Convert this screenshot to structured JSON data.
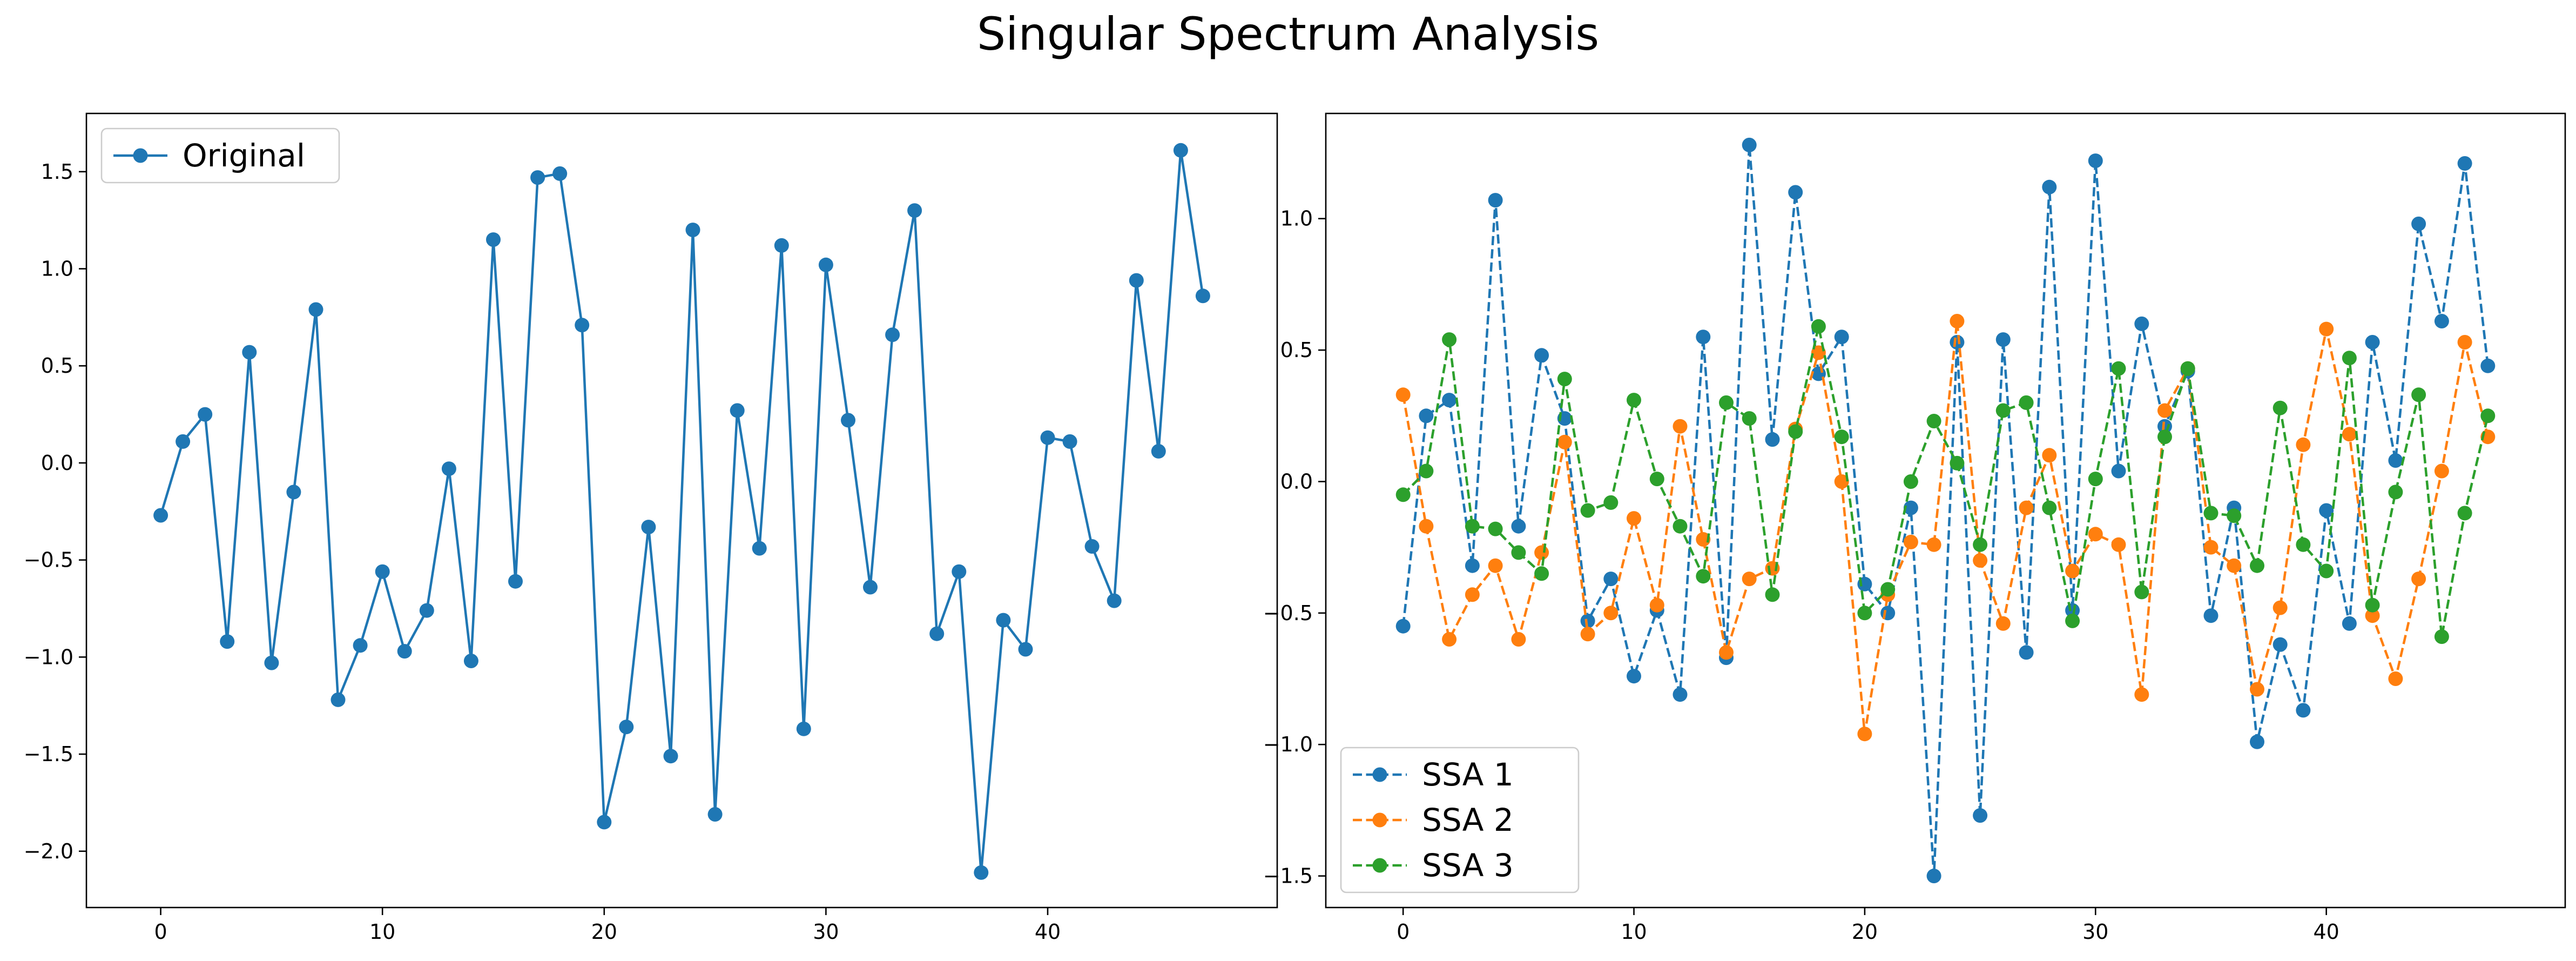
{
  "figure": {
    "suptitle": "Singular Spectrum Analysis"
  },
  "chart_data": [
    {
      "type": "line",
      "xlim": [
        -3.35,
        50.35
      ],
      "ylim": [
        -2.29,
        1.8
      ],
      "xticks": [
        0,
        10,
        20,
        30,
        40
      ],
      "xtick_labels": [
        "0",
        "10",
        "20",
        "30",
        "40"
      ],
      "yticks": [
        -2.0,
        -1.5,
        -1.0,
        -0.5,
        0.0,
        0.5,
        1.0,
        1.5
      ],
      "ytick_labels": [
        "−2.0",
        "−1.5",
        "−1.0",
        "−0.5",
        "0.0",
        "0.5",
        "1.0",
        "1.5"
      ],
      "legend_position": "upper-left",
      "series": [
        {
          "name": "Original",
          "color": "#1f77b4",
          "linestyle": "solid",
          "marker": "circle",
          "x": [
            0,
            1,
            2,
            3,
            4,
            5,
            6,
            7,
            8,
            9,
            10,
            11,
            12,
            13,
            14,
            15,
            16,
            17,
            18,
            19,
            20,
            21,
            22,
            23,
            24,
            25,
            26,
            27,
            28,
            29,
            30,
            31,
            32,
            33,
            34,
            35,
            36,
            37,
            38,
            39,
            40,
            41,
            42,
            43,
            44,
            45,
            46,
            47
          ],
          "values": [
            -0.27,
            0.11,
            0.25,
            -0.92,
            0.57,
            -1.03,
            -0.15,
            0.79,
            -1.22,
            -0.94,
            -0.56,
            -0.97,
            -0.76,
            -0.03,
            -1.02,
            1.15,
            -0.61,
            1.47,
            1.49,
            0.71,
            -1.85,
            -1.36,
            -0.33,
            -1.51,
            1.2,
            -1.81,
            0.27,
            -0.44,
            1.12,
            -1.37,
            1.02,
            0.22,
            -0.64,
            0.66,
            1.3,
            -0.88,
            -0.56,
            -2.11,
            -0.81,
            -0.96,
            0.13,
            0.11,
            -0.43,
            -0.71,
            0.94,
            0.06,
            1.61,
            0.86
          ]
        }
      ]
    },
    {
      "type": "line",
      "xlim": [
        -3.35,
        50.35
      ],
      "ylim": [
        -1.62,
        1.4
      ],
      "xticks": [
        0,
        10,
        20,
        30,
        40
      ],
      "xtick_labels": [
        "0",
        "10",
        "20",
        "30",
        "40"
      ],
      "yticks": [
        -1.5,
        -1.0,
        -0.5,
        0.0,
        0.5,
        1.0
      ],
      "ytick_labels": [
        "−1.5",
        "−1.0",
        "−0.5",
        "0.0",
        "0.5",
        "1.0"
      ],
      "legend_position": "lower-left",
      "series": [
        {
          "name": "SSA 1",
          "color": "#1f77b4",
          "linestyle": "dashed",
          "marker": "circle",
          "x": [
            0,
            1,
            2,
            3,
            4,
            5,
            6,
            7,
            8,
            9,
            10,
            11,
            12,
            13,
            14,
            15,
            16,
            17,
            18,
            19,
            20,
            21,
            22,
            23,
            24,
            25,
            26,
            27,
            28,
            29,
            30,
            31,
            32,
            33,
            34,
            35,
            36,
            37,
            38,
            39,
            40,
            41,
            42,
            43,
            44,
            45,
            46,
            47
          ],
          "values": [
            -0.55,
            0.25,
            0.31,
            -0.32,
            1.07,
            -0.17,
            0.48,
            0.24,
            -0.53,
            -0.37,
            -0.74,
            -0.49,
            -0.81,
            0.55,
            -0.67,
            1.28,
            0.16,
            1.1,
            0.41,
            0.55,
            -0.39,
            -0.5,
            -0.1,
            -1.5,
            0.53,
            -1.27,
            0.54,
            -0.65,
            1.12,
            -0.49,
            1.22,
            0.04,
            0.6,
            0.21,
            0.42,
            -0.51,
            -0.1,
            -0.99,
            -0.62,
            -0.87,
            -0.11,
            -0.54,
            0.53,
            0.08,
            0.98,
            0.61,
            1.21,
            0.44
          ]
        },
        {
          "name": "SSA 2",
          "color": "#ff7f0e",
          "linestyle": "dashed",
          "marker": "circle",
          "x": [
            0,
            1,
            2,
            3,
            4,
            5,
            6,
            7,
            8,
            9,
            10,
            11,
            12,
            13,
            14,
            15,
            16,
            17,
            18,
            19,
            20,
            21,
            22,
            23,
            24,
            25,
            26,
            27,
            28,
            29,
            30,
            31,
            32,
            33,
            34,
            35,
            36,
            37,
            38,
            39,
            40,
            41,
            42,
            43,
            44,
            45,
            46,
            47
          ],
          "values": [
            0.33,
            -0.17,
            -0.6,
            -0.43,
            -0.32,
            -0.6,
            -0.27,
            0.15,
            -0.58,
            -0.5,
            -0.14,
            -0.47,
            0.21,
            -0.22,
            -0.65,
            -0.37,
            -0.33,
            0.2,
            0.49,
            0.0,
            -0.96,
            -0.43,
            -0.23,
            -0.24,
            0.61,
            -0.3,
            -0.54,
            -0.1,
            0.1,
            -0.34,
            -0.2,
            -0.24,
            -0.81,
            0.27,
            0.43,
            -0.25,
            -0.32,
            -0.79,
            -0.48,
            0.14,
            0.58,
            0.18,
            -0.51,
            -0.75,
            -0.37,
            0.04,
            0.53,
            0.17
          ]
        },
        {
          "name": "SSA 3",
          "color": "#2ca02c",
          "linestyle": "dashed",
          "marker": "circle",
          "x": [
            0,
            1,
            2,
            3,
            4,
            5,
            6,
            7,
            8,
            9,
            10,
            11,
            12,
            13,
            14,
            15,
            16,
            17,
            18,
            19,
            20,
            21,
            22,
            23,
            24,
            25,
            26,
            27,
            28,
            29,
            30,
            31,
            32,
            33,
            34,
            35,
            36,
            37,
            38,
            39,
            40,
            41,
            42,
            43,
            44,
            45,
            46,
            47
          ],
          "values": [
            -0.05,
            0.04,
            0.54,
            -0.17,
            -0.18,
            -0.27,
            -0.35,
            0.39,
            -0.11,
            -0.08,
            0.31,
            0.01,
            -0.17,
            -0.36,
            0.3,
            0.24,
            -0.43,
            0.19,
            0.59,
            0.17,
            -0.5,
            -0.41,
            0.0,
            0.23,
            0.07,
            -0.24,
            0.27,
            0.3,
            -0.1,
            -0.53,
            0.01,
            0.43,
            -0.42,
            0.17,
            0.43,
            -0.12,
            -0.13,
            -0.32,
            0.28,
            -0.24,
            -0.34,
            0.47,
            -0.47,
            -0.04,
            0.33,
            -0.59,
            -0.12,
            0.25
          ]
        }
      ]
    }
  ]
}
